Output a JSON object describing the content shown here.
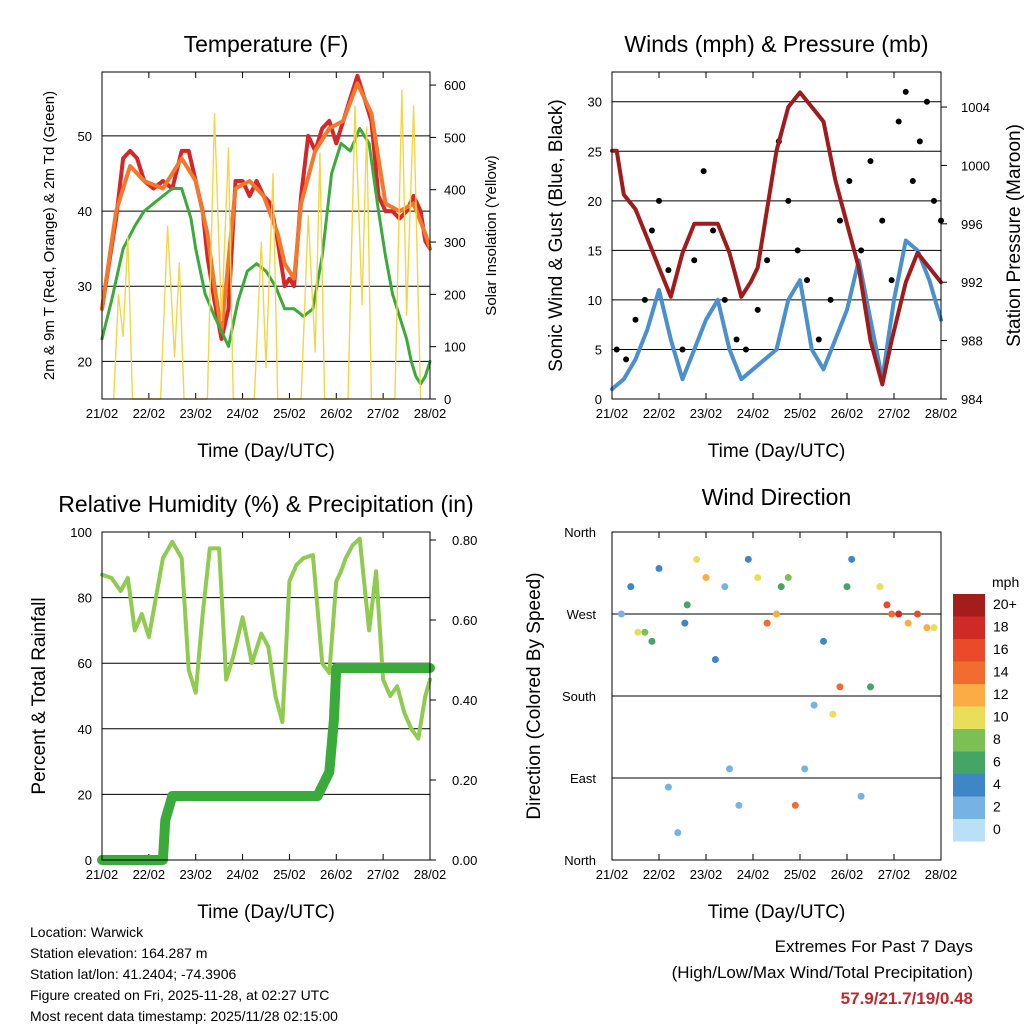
{
  "colors": {
    "temp2m": "#d62728",
    "temp9m": "#f4772e",
    "dewpoint": "#3aab3a",
    "solar": "#f5d547",
    "wind": "#4a8fce",
    "gust": "#000000",
    "pressure": "#a01c1c",
    "rh": "#8fcb4f",
    "precip": "#3aab3a",
    "extremes": "#c0282d"
  },
  "time_ticks": [
    "21/02",
    "22/02",
    "23/02",
    "24/02",
    "25/02",
    "26/02",
    "27/02",
    "28/02"
  ],
  "chart_data": [
    {
      "id": "temperature",
      "type": "line",
      "title": "Temperature (F)",
      "xlabel": "Time (Day/UTC)",
      "ylabel": "2m & 9m T (Red, Orange) & 2m Td (Green)",
      "y2label": "Solar Insolation (Yellow)",
      "ylim": [
        15,
        58.5
      ],
      "yticks": [
        20,
        30,
        40,
        50
      ],
      "y2lim": [
        0,
        625
      ],
      "y2ticks": [
        0,
        100,
        200,
        300,
        400,
        500,
        600
      ],
      "xlim": [
        0,
        7
      ],
      "series": [
        {
          "name": "2m T",
          "color": "#d62728",
          "x": [
            0,
            0.15,
            0.3,
            0.45,
            0.6,
            0.75,
            0.9,
            1.1,
            1.3,
            1.5,
            1.7,
            1.85,
            2.0,
            2.15,
            2.25,
            2.4,
            2.55,
            2.7,
            2.85,
            3.0,
            3.15,
            3.3,
            3.45,
            3.6,
            3.75,
            3.9,
            4.0,
            4.1,
            4.25,
            4.4,
            4.55,
            4.7,
            4.85,
            5.0,
            5.15,
            5.3,
            5.45,
            5.6,
            5.75,
            5.9,
            6.05,
            6.2,
            6.35,
            6.5,
            6.65,
            6.8,
            6.9,
            7.0
          ],
          "values": [
            27,
            33,
            39,
            47,
            48,
            47,
            44,
            43,
            44,
            43,
            48,
            48,
            44,
            40,
            34,
            28,
            23,
            27,
            44,
            44,
            42,
            44,
            42,
            41,
            36,
            30,
            31,
            30,
            42,
            50,
            48,
            51,
            52,
            49,
            52,
            55,
            58,
            55,
            52,
            42,
            40,
            40,
            39,
            40,
            42,
            40,
            36,
            35
          ]
        },
        {
          "name": "9m T",
          "color": "#f4772e",
          "x": [
            0,
            0.3,
            0.6,
            0.9,
            1.3,
            1.7,
            2.0,
            2.25,
            2.4,
            2.55,
            2.85,
            3.15,
            3.45,
            3.75,
            3.9,
            4.0,
            4.1,
            4.25,
            4.55,
            4.85,
            5.15,
            5.45,
            5.75,
            6.05,
            6.35,
            6.65,
            6.9,
            7.0
          ],
          "values": [
            27,
            40,
            46,
            44,
            43,
            47,
            44,
            37,
            30,
            24,
            43,
            44,
            42,
            37,
            33,
            32,
            31,
            41,
            48,
            51,
            52,
            57,
            53,
            41,
            40,
            41,
            37,
            35
          ]
        },
        {
          "name": "2m Td",
          "color": "#3aab3a",
          "x": [
            0,
            0.2,
            0.45,
            0.7,
            0.9,
            1.1,
            1.3,
            1.5,
            1.7,
            1.9,
            2.0,
            2.2,
            2.4,
            2.55,
            2.7,
            2.9,
            3.1,
            3.3,
            3.5,
            3.7,
            3.9,
            4.1,
            4.3,
            4.5,
            4.7,
            4.9,
            5.1,
            5.3,
            5.5,
            5.7,
            5.9,
            6.05,
            6.2,
            6.35,
            6.5,
            6.6,
            6.7,
            6.8,
            6.9,
            7.0
          ],
          "values": [
            23,
            28,
            35,
            38,
            40,
            41,
            42,
            43,
            43,
            39,
            35,
            29,
            26,
            24,
            22,
            28,
            32,
            33,
            32,
            30,
            27,
            27,
            26,
            27,
            34,
            45,
            49,
            48,
            51,
            49,
            40,
            34,
            29,
            26,
            23,
            20,
            18,
            17,
            18,
            20
          ]
        },
        {
          "name": "Solar Insolation",
          "color": "#f5d547",
          "axis": "y2",
          "x": [
            0.25,
            0.35,
            0.45,
            0.55,
            0.65,
            1.25,
            1.4,
            1.55,
            1.65,
            1.75,
            2.25,
            2.4,
            2.55,
            2.7,
            2.8,
            3.25,
            3.4,
            3.5,
            3.65,
            3.75,
            4.25,
            4.4,
            4.55,
            4.65,
            4.75,
            5.25,
            5.4,
            5.55,
            5.65,
            5.75,
            6.25,
            6.4,
            6.5,
            6.65,
            6.8
          ],
          "values": [
            0,
            200,
            120,
            310,
            0,
            0,
            330,
            80,
            260,
            0,
            0,
            545,
            150,
            480,
            0,
            0,
            300,
            60,
            430,
            0,
            0,
            350,
            90,
            470,
            0,
            0,
            560,
            180,
            520,
            0,
            0,
            590,
            160,
            560,
            0
          ]
        }
      ]
    },
    {
      "id": "winds",
      "type": "line",
      "title": "Winds (mph) & Pressure (mb)",
      "xlabel": "Time (Day/UTC)",
      "ylabel": "Sonic Wind & Gust (Blue, Black)",
      "y2label": "Station Pressure (Maroon)",
      "ylim": [
        0,
        33
      ],
      "yticks": [
        0,
        5,
        10,
        15,
        20,
        25,
        30
      ],
      "y2lim": [
        984,
        1006.4
      ],
      "y2ticks": [
        984,
        988,
        992,
        996,
        1000,
        1004
      ],
      "xlim": [
        0,
        7
      ],
      "series": [
        {
          "name": "Sonic Wind",
          "color": "#4a8fce",
          "x": [
            0,
            0.25,
            0.5,
            0.75,
            1.0,
            1.25,
            1.5,
            1.75,
            2.0,
            2.25,
            2.5,
            2.75,
            3.0,
            3.25,
            3.5,
            3.75,
            4.0,
            4.25,
            4.5,
            4.75,
            5.0,
            5.25,
            5.5,
            5.75,
            6.0,
            6.25,
            6.5,
            6.75,
            7.0
          ],
          "values": [
            1,
            2,
            4,
            7,
            11,
            6,
            2,
            5,
            8,
            10,
            5,
            2,
            3,
            4,
            5,
            10,
            12,
            5,
            3,
            6,
            9,
            14,
            8,
            2,
            10,
            16,
            15,
            12,
            8
          ]
        },
        {
          "name": "Gust",
          "color": "#000000",
          "style": "points",
          "x": [
            0.1,
            0.3,
            0.5,
            0.7,
            0.85,
            1.0,
            1.2,
            1.5,
            1.75,
            1.95,
            2.15,
            2.4,
            2.65,
            2.85,
            3.1,
            3.3,
            3.55,
            3.75,
            3.95,
            4.15,
            4.4,
            4.65,
            4.85,
            5.05,
            5.3,
            5.5,
            5.75,
            5.95,
            6.1,
            6.25,
            6.4,
            6.55,
            6.7,
            6.85,
            7.0
          ],
          "values": [
            5,
            4,
            8,
            10,
            17,
            20,
            13,
            5,
            14,
            23,
            17,
            10,
            6,
            5,
            9,
            14,
            26,
            20,
            15,
            12,
            6,
            10,
            18,
            22,
            15,
            24,
            18,
            12,
            28,
            31,
            22,
            26,
            30,
            20,
            18
          ]
        },
        {
          "name": "Station Pressure",
          "color": "#a01c1c",
          "axis": "y2",
          "x": [
            0,
            0.1,
            0.25,
            0.5,
            0.75,
            1.0,
            1.25,
            1.5,
            1.75,
            2.0,
            2.25,
            2.5,
            2.75,
            2.95,
            3.1,
            3.3,
            3.5,
            3.75,
            4.0,
            4.25,
            4.5,
            4.75,
            5.0,
            5.25,
            5.5,
            5.75,
            5.95,
            6.1,
            6.25,
            6.5,
            6.75,
            7.0
          ],
          "values": [
            1001,
            1001,
            998,
            997,
            995,
            993,
            991,
            994,
            996,
            996,
            996,
            994,
            991,
            992,
            993,
            997,
            1001,
            1004,
            1005,
            1004,
            1003,
            999,
            996,
            993,
            988,
            985,
            988,
            990,
            992,
            994,
            993,
            992
          ]
        }
      ]
    },
    {
      "id": "humidity",
      "type": "line",
      "title": "Relative Humidity (%) & Precipitation (in)",
      "xlabel": "Time (Day/UTC)",
      "ylabel": "Percent & Total Rainfall",
      "ylim": [
        0,
        100
      ],
      "yticks": [
        0,
        20,
        40,
        60,
        80,
        100
      ],
      "y2lim": [
        0,
        0.82
      ],
      "y2ticks": [
        "0.00",
        "0.20",
        "0.40",
        "0.60",
        "0.80"
      ],
      "xlim": [
        0,
        7
      ],
      "series": [
        {
          "name": "Relative Humidity",
          "color": "#8fcb4f",
          "x": [
            0,
            0.2,
            0.4,
            0.55,
            0.7,
            0.85,
            1.0,
            1.15,
            1.3,
            1.5,
            1.7,
            1.85,
            2.0,
            2.15,
            2.3,
            2.5,
            2.65,
            2.8,
            3.0,
            3.2,
            3.4,
            3.55,
            3.7,
            3.85,
            4.0,
            4.15,
            4.3,
            4.5,
            4.7,
            4.85,
            5.0,
            5.1,
            5.2,
            5.35,
            5.5,
            5.7,
            5.85,
            6.0,
            6.15,
            6.3,
            6.45,
            6.6,
            6.75,
            6.9,
            7.0
          ],
          "values": [
            87,
            86,
            82,
            86,
            70,
            75,
            68,
            80,
            92,
            97,
            92,
            58,
            51,
            75,
            95,
            95,
            55,
            62,
            74,
            60,
            69,
            65,
            50,
            42,
            85,
            90,
            92,
            93,
            60,
            57,
            85,
            88,
            92,
            96,
            98,
            70,
            88,
            55,
            50,
            53,
            45,
            40,
            37,
            50,
            55
          ]
        },
        {
          "name": "Total Precipitation",
          "color": "#3aab3a",
          "axis": "y2",
          "x": [
            0,
            1.2,
            1.3,
            1.35,
            1.5,
            4.6,
            4.85,
            4.95,
            5.0,
            7.0
          ],
          "values": [
            0,
            0,
            0,
            0.1,
            0.16,
            0.16,
            0.22,
            0.35,
            0.48,
            0.48
          ]
        }
      ]
    },
    {
      "id": "direction",
      "type": "scatter",
      "title": "Wind Direction",
      "xlabel": "Time (Day/UTC)",
      "ylabel": "Direction (Colored By Speed)",
      "yticks": [
        "North",
        "East",
        "South",
        "West",
        "North"
      ],
      "ylim": [
        0,
        360
      ],
      "xlim": [
        0,
        7
      ],
      "legend": {
        "title": "mph",
        "labels": [
          "20+",
          "18",
          "16",
          "14",
          "12",
          "10",
          "8",
          "6",
          "4",
          "2",
          "0"
        ],
        "colors": [
          "#a51c1c",
          "#cf2a26",
          "#e84a2a",
          "#f26b2f",
          "#fbac45",
          "#e8de5a",
          "#7cbf55",
          "#44a564",
          "#3f86c6",
          "#76b3e2",
          "#b9e0f7"
        ]
      },
      "series": [
        {
          "name": "direction",
          "x": [
            0.2,
            0.4,
            0.55,
            0.7,
            0.85,
            1.0,
            1.2,
            1.4,
            1.55,
            1.6,
            1.8,
            2.0,
            2.2,
            2.4,
            2.5,
            2.7,
            2.9,
            3.1,
            3.3,
            3.5,
            3.6,
            3.75,
            3.9,
            4.1,
            4.3,
            4.5,
            4.7,
            4.85,
            5.0,
            5.1,
            5.3,
            5.5,
            5.7,
            5.85,
            5.95,
            6.1,
            6.3,
            6.5,
            6.7,
            6.85
          ],
          "values": [
            270,
            300,
            250,
            250,
            240,
            320,
            80,
            30,
            260,
            280,
            330,
            310,
            220,
            300,
            100,
            60,
            330,
            310,
            260,
            270,
            300,
            310,
            60,
            100,
            170,
            240,
            160,
            190,
            300,
            330,
            70,
            190,
            300,
            280,
            270,
            270,
            260,
            270,
            255,
            255
          ],
          "speeds": [
            2,
            3,
            10,
            8,
            6,
            4,
            1,
            2,
            4,
            5,
            10,
            12,
            3,
            2,
            2,
            1,
            4,
            10,
            14,
            12,
            6,
            8,
            14,
            2,
            2,
            4,
            10,
            14,
            6,
            4,
            2,
            6,
            10,
            16,
            14,
            18,
            12,
            16,
            12,
            10
          ]
        }
      ]
    }
  ],
  "info": {
    "location": "Location: Warwick",
    "elevation": "Station elevation: 164.287 m",
    "latlon": "Station lat/lon: 41.2404; -74.3906",
    "created": "Figure created on Fri, 2025-11-28, at 02:27 UTC",
    "recent": "Most recent data timestamp: 2025/11/28 02:15:00"
  },
  "extremes": {
    "title": "Extremes For Past 7 Days",
    "subtitle": "(High/Low/Max Wind/Total Precipitation)",
    "values": "57.9/21.7/19/0.48"
  }
}
